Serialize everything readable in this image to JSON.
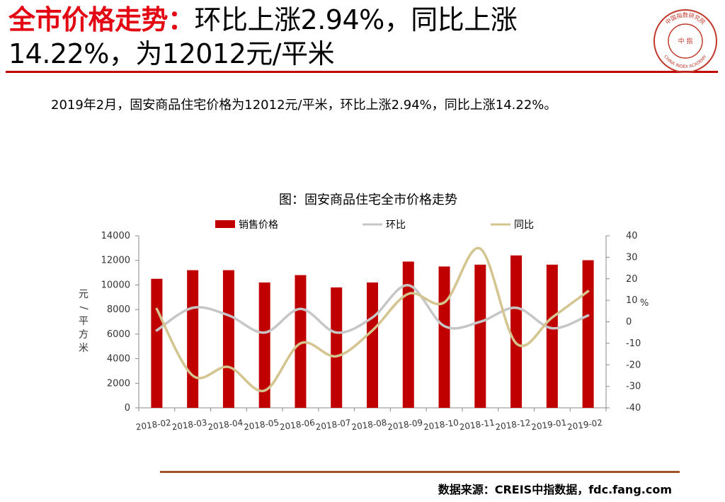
{
  "header": {
    "title_accent": "全市价格走势：",
    "title_rest": "环比上涨2.94%，同比上涨14.22%，为12012元/平米",
    "subtitle": "2019年2月，固安商品住宅价格为12012元/平米，环比上涨2.94%，同比上涨14.22%。"
  },
  "logo": {
    "top_text": "中国指数研究院",
    "center_text": "中 指",
    "bottom_text": "CHINA INDEX ACADEMY",
    "color": "#c0392b"
  },
  "chart_data": {
    "type": "bar",
    "title": "图：固安商品住宅全市价格走势",
    "categories": [
      "2018-02",
      "2018-03",
      "2018-04",
      "2018-05",
      "2018-06",
      "2018-07",
      "2018-08",
      "2018-09",
      "2018-10",
      "2018-11",
      "2018-12",
      "2019-01",
      "2019-02"
    ],
    "series": [
      {
        "name": "销售价格",
        "type": "bar",
        "axis": "left",
        "color": "#c00000",
        "values": [
          10500,
          11200,
          11200,
          10200,
          10800,
          9800,
          10200,
          11900,
          11500,
          11650,
          12400,
          11650,
          12012
        ]
      },
      {
        "name": "环比",
        "type": "line",
        "axis": "right",
        "color": "#c6c6c6",
        "values": [
          -4,
          6.5,
          3,
          -5,
          6,
          -5,
          2,
          17,
          -2,
          0,
          6.5,
          -3,
          2.94
        ]
      },
      {
        "name": "同比",
        "type": "line",
        "axis": "right",
        "color": "#d4c48f",
        "values": [
          6,
          -25,
          -21,
          -32,
          -10,
          -16,
          -4,
          13,
          9,
          34,
          -10,
          2,
          14.22
        ]
      }
    ],
    "ylabel": "元/平方米",
    "y2label": "%",
    "ylim": [
      0,
      14000
    ],
    "yticks": [
      "0",
      "2000",
      "4000",
      "6000",
      "8000",
      "10000",
      "12000",
      "14000"
    ],
    "y2lim": [
      -40,
      40
    ],
    "y2ticks": [
      "-40",
      "-30",
      "-20",
      "-10",
      "0",
      "10",
      "20",
      "30",
      "40"
    ],
    "legend": "top",
    "grid": false
  },
  "footer": {
    "source": "数据来源：CREIS中指数据，fdc.fang.com"
  }
}
